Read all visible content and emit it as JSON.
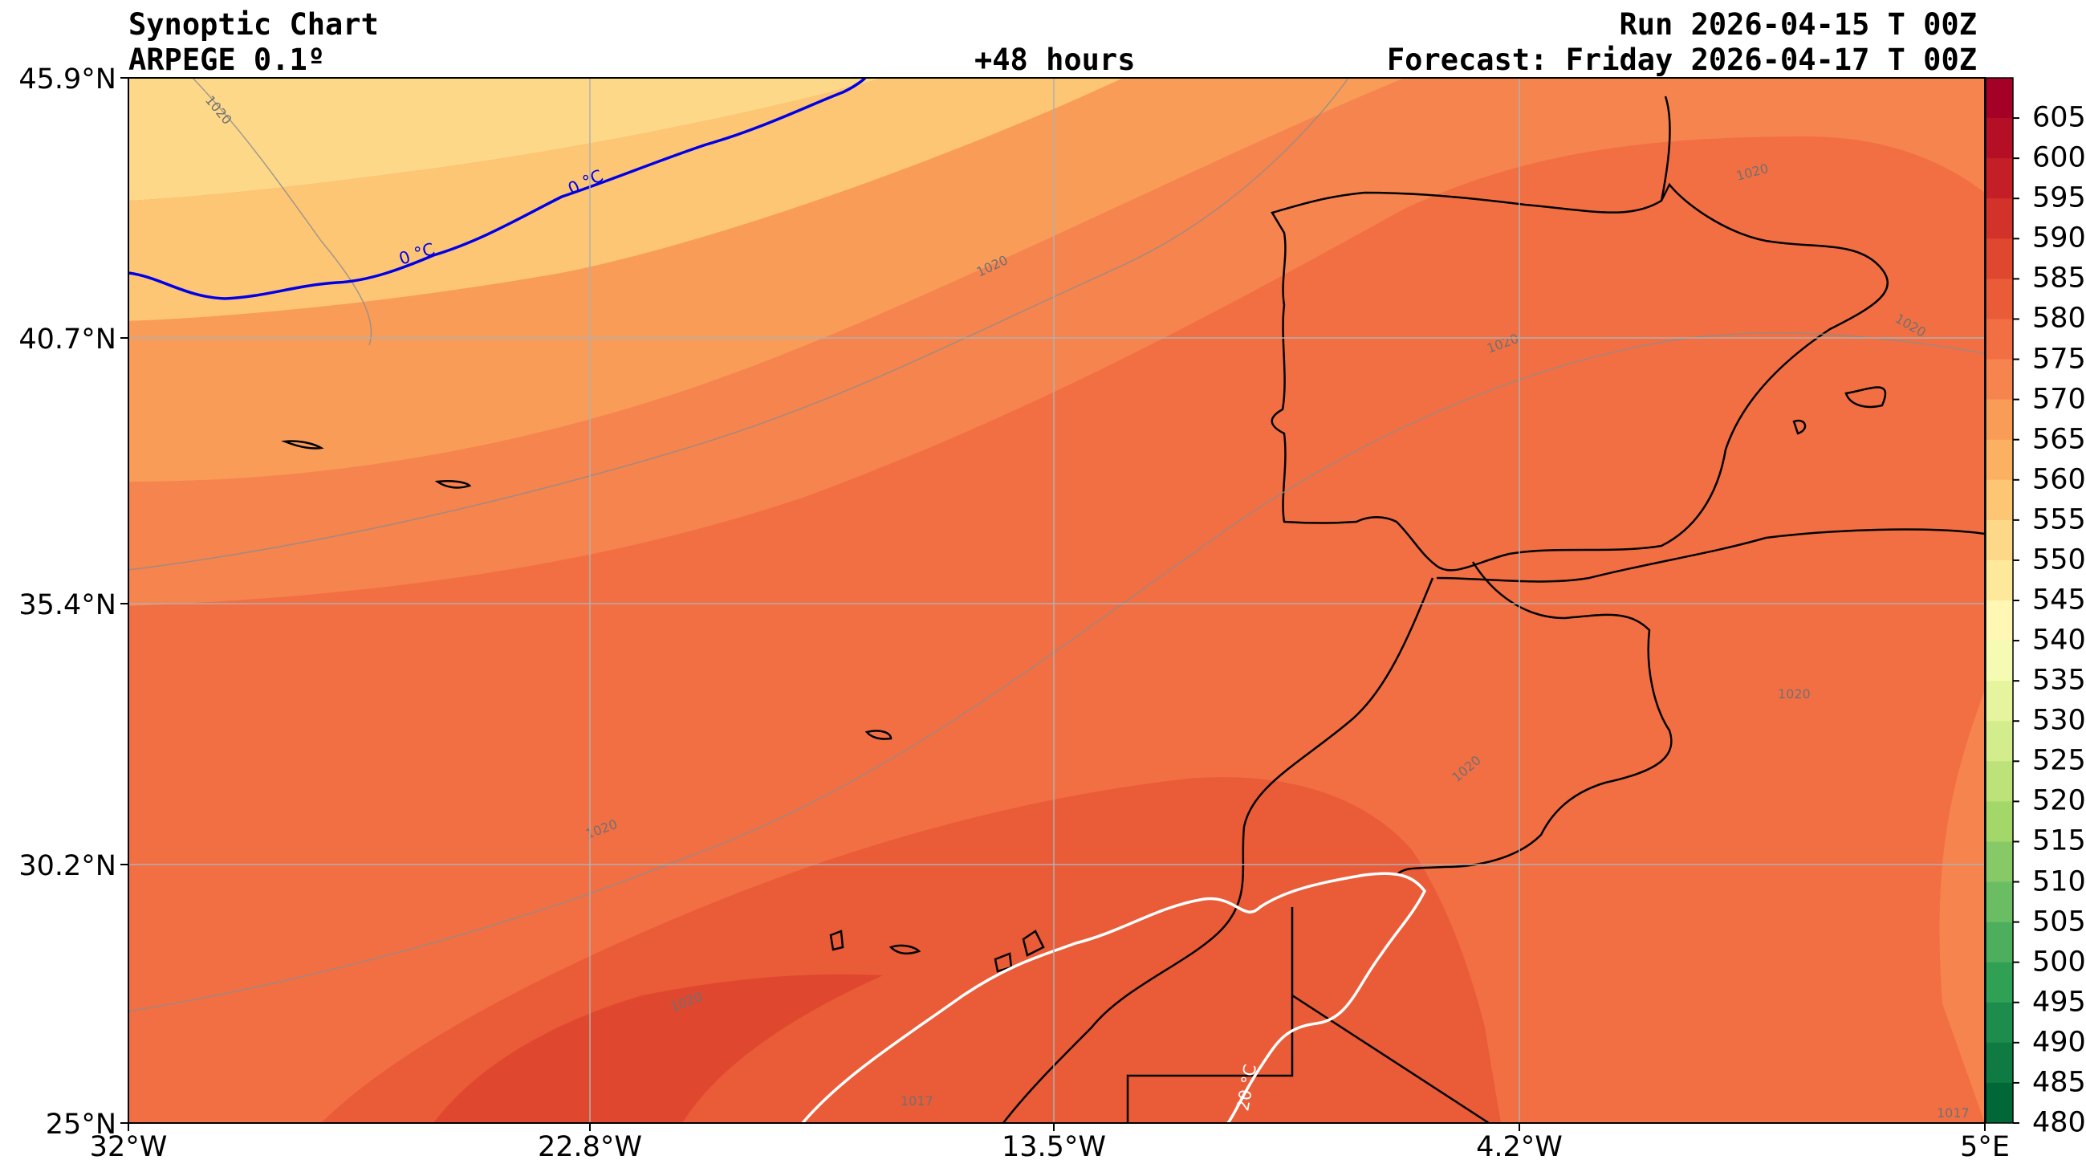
{
  "header": {
    "title_line1": "Synoptic Chart",
    "title_line2": "ARPEGE 0.1º",
    "lead_time": "+48 hours",
    "run": "Run 2026-04-15 T 00Z",
    "forecast": "Forecast: Friday 2026-04-17 T 00Z"
  },
  "axes": {
    "lat_labels": [
      "45.9°N",
      "40.7°N",
      "35.4°N",
      "30.2°N",
      "25°N"
    ],
    "lon_labels": [
      "32°W",
      "22.8°W",
      "13.5°W",
      "4.2°W",
      "5°E"
    ]
  },
  "colorbar": {
    "labels": [
      "605",
      "600",
      "595",
      "590",
      "585",
      "580",
      "575",
      "570",
      "565",
      "560",
      "555",
      "550",
      "545",
      "540",
      "535",
      "530",
      "525",
      "520",
      "515",
      "510",
      "505",
      "500",
      "495",
      "490",
      "485",
      "480"
    ],
    "colors_top_to_bottom": [
      "#a50026",
      "#b50f26",
      "#c41f27",
      "#d3322b",
      "#e0472f",
      "#ea5b37",
      "#f26f43",
      "#f6844e",
      "#f99c58",
      "#fcb162",
      "#fdc675",
      "#fed889",
      "#fee99b",
      "#fff7b3",
      "#f5fbb2",
      "#e6f59d",
      "#d3ed8d",
      "#bde27a",
      "#a4d76a",
      "#88c967",
      "#6bbd64",
      "#4daf5e",
      "#30a055",
      "#1d8c4c",
      "#0f7a42",
      "#006837"
    ]
  },
  "contour_labels": {
    "isotherm_0": "0 °C",
    "isotherm_20": "20 °C",
    "isobar_1020": "1020",
    "isobar_1017": "1017"
  }
}
